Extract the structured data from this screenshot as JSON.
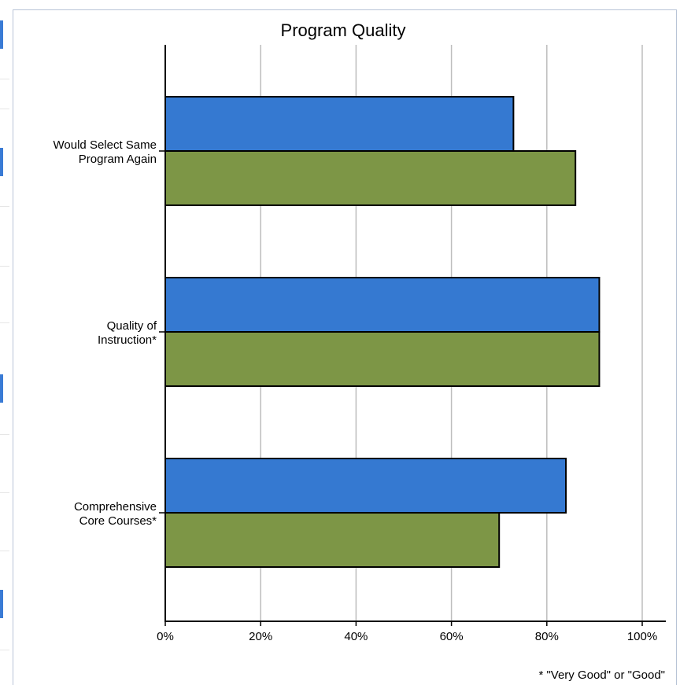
{
  "chart_data": {
    "type": "bar",
    "orientation": "horizontal",
    "title": "Program Quality",
    "categories": [
      [
        "Would Select Same",
        "Program Again"
      ],
      [
        "Quality of",
        "Instruction*"
      ],
      [
        "Comprehensive",
        "Core Courses*"
      ]
    ],
    "series": [
      {
        "values": [
          73,
          91,
          84
        ],
        "color": "#3579d1"
      },
      {
        "values": [
          86,
          91,
          70
        ],
        "color": "#7d9646"
      }
    ],
    "xlim": [
      0,
      100
    ],
    "xticks": [
      "0%",
      "20%",
      "40%",
      "60%",
      "80%",
      "100%"
    ],
    "grid": true,
    "footnote": "* \"Very Good\" or \"Good\""
  }
}
